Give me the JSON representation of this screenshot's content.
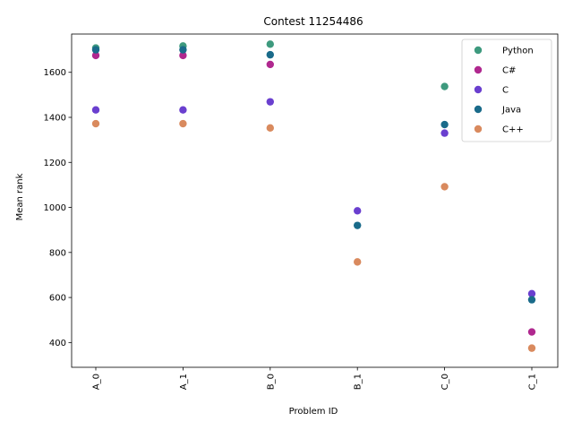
{
  "chart_data": {
    "type": "scatter",
    "title": "Contest 11254486",
    "xlabel": "Problem ID",
    "ylabel": "Mean rank",
    "categories": [
      "A_0",
      "A_1",
      "B_0",
      "B_1",
      "C_0",
      "C_1"
    ],
    "ylim": [
      290,
      1770
    ],
    "yticks": [
      400,
      600,
      800,
      1000,
      1200,
      1400,
      1600
    ],
    "grid": false,
    "legend_position": "top-right",
    "series": [
      {
        "name": "Python",
        "color": "#3e9a7e",
        "values": [
          1708,
          1717,
          1725,
          null,
          1537,
          null
        ]
      },
      {
        "name": "C#",
        "color": "#b0288f",
        "values": [
          1675,
          1675,
          1635,
          null,
          null,
          447
        ]
      },
      {
        "name": "C",
        "color": "#6a3fcf",
        "values": [
          1433,
          1433,
          1469,
          985,
          1330,
          617
        ]
      },
      {
        "name": "Java",
        "color": "#1a6b8a",
        "values": [
          1700,
          1700,
          1678,
          920,
          1368,
          590
        ]
      },
      {
        "name": "C++",
        "color": "#d98a5e",
        "values": [
          1372,
          1372,
          1353,
          758,
          1092,
          375
        ]
      }
    ]
  }
}
